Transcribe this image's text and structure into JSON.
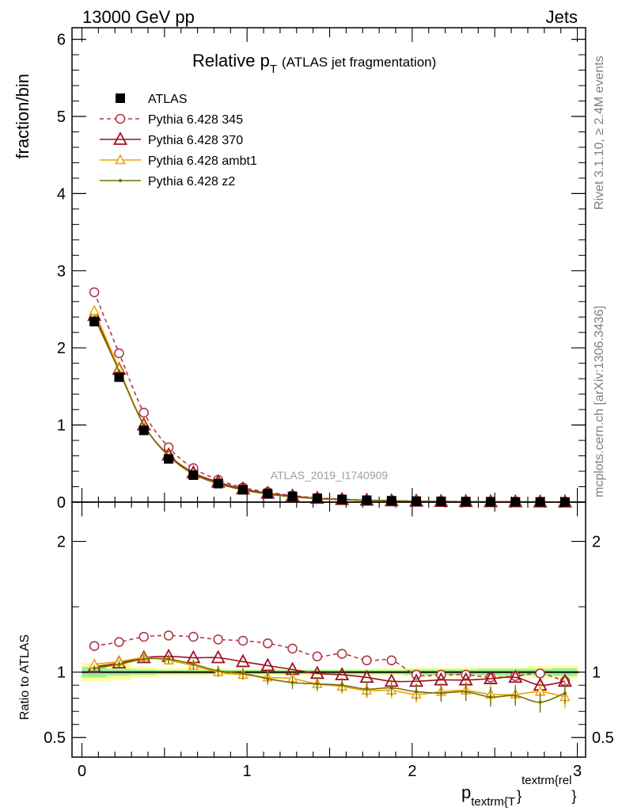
{
  "header": {
    "left": "13000 GeV pp",
    "right": "Jets"
  },
  "side": {
    "rivet": "Rivet 3.1.10, ≥ 2.4M events",
    "mcplots": "mcplots.cern.ch [arXiv:1306.3436]"
  },
  "chart_data": [
    {
      "type": "line",
      "panel": "main",
      "title_main": "Relative p",
      "title_sub": "T",
      "title_rest": "(ATLAS jet fragmentation)",
      "ylabel": "fraction/bin",
      "analysis": "ATLAS_2019_I1740909",
      "xlim": [
        -0.06,
        3.05
      ],
      "ylim": [
        0,
        6.15
      ],
      "yticks": [
        0,
        1,
        2,
        3,
        4,
        5,
        6
      ],
      "x": [
        0.075,
        0.225,
        0.375,
        0.525,
        0.675,
        0.825,
        0.975,
        1.125,
        1.275,
        1.425,
        1.575,
        1.725,
        1.875,
        2.025,
        2.175,
        2.325,
        2.475,
        2.625,
        2.775,
        2.925
      ],
      "series": [
        {
          "name": "ATLAS",
          "color": "#000000",
          "style": "data",
          "values": [
            2.34,
            1.62,
            0.93,
            0.56,
            0.35,
            0.24,
            0.16,
            0.11,
            0.075,
            0.05,
            0.035,
            0.025,
            0.018,
            0.013,
            0.01,
            0.007,
            0.005,
            0.004,
            0.003,
            0.002
          ]
        },
        {
          "name": "Pythia 6.428 345",
          "color": "#b03a48",
          "style": "dashed-circle",
          "values": [
            2.72,
            1.93,
            1.16,
            0.71,
            0.44,
            0.29,
            0.19,
            0.13,
            0.085,
            0.055,
            0.038,
            0.027,
            0.019,
            0.013,
            0.01,
            0.007,
            0.005,
            0.004,
            0.003,
            0.002
          ]
        },
        {
          "name": "Pythia 6.428 370",
          "color": "#9b1024",
          "style": "solid-triangle",
          "values": [
            2.42,
            1.72,
            1.0,
            0.61,
            0.38,
            0.26,
            0.17,
            0.115,
            0.078,
            0.05,
            0.034,
            0.024,
            0.017,
            0.012,
            0.009,
            0.0068,
            0.0048,
            0.0038,
            0.0027,
            0.0019
          ]
        },
        {
          "name": "Pythia 6.428 ambt1",
          "color": "#f0a000",
          "style": "solid-triangle-small",
          "values": [
            2.48,
            1.73,
            1.0,
            0.6,
            0.36,
            0.24,
            0.155,
            0.105,
            0.07,
            0.045,
            0.031,
            0.022,
            0.016,
            0.011,
            0.0085,
            0.006,
            0.0042,
            0.0034,
            0.0026,
            0.0016
          ]
        },
        {
          "name": "Pythia 6.428 z2",
          "color": "#707000",
          "style": "solid-dot",
          "values": [
            2.4,
            1.7,
            1.0,
            0.6,
            0.37,
            0.24,
            0.16,
            0.105,
            0.069,
            0.045,
            0.031,
            0.022,
            0.016,
            0.011,
            0.0085,
            0.006,
            0.0041,
            0.0033,
            0.0023,
            0.0017
          ]
        }
      ]
    },
    {
      "type": "line",
      "panel": "ratio",
      "ylabel": "Ratio to ATLAS",
      "xlabel_main": "p",
      "xlabel_sub": "textrm{T",
      "xlabel_brace": "}",
      "xlabel_sup": "textrm{rel",
      "xlabel_close": "}",
      "xlim": [
        -0.06,
        3.05
      ],
      "ylim": [
        0.35,
        2.3
      ],
      "yticks": [
        0.5,
        1,
        2
      ],
      "ytick_labels": [
        "0.5",
        "1",
        "2"
      ],
      "xticks": [
        0,
        1,
        2,
        3
      ],
      "xtick_labels": [
        "0",
        "1",
        "2",
        "3"
      ],
      "x": [
        0.075,
        0.225,
        0.375,
        0.525,
        0.675,
        0.825,
        0.975,
        1.125,
        1.275,
        1.425,
        1.575,
        1.725,
        1.875,
        2.025,
        2.175,
        2.325,
        2.475,
        2.625,
        2.775,
        2.925
      ],
      "band_stat": [
        0.04,
        0.025,
        0.02,
        0.015,
        0.015,
        0.015,
        0.015,
        0.015,
        0.015,
        0.015,
        0.015,
        0.015,
        0.015,
        0.02,
        0.02,
        0.02,
        0.025,
        0.025,
        0.025,
        0.03
      ],
      "band_total": [
        0.07,
        0.06,
        0.04,
        0.03,
        0.03,
        0.025,
        0.025,
        0.025,
        0.025,
        0.025,
        0.025,
        0.025,
        0.03,
        0.035,
        0.035,
        0.035,
        0.04,
        0.04,
        0.045,
        0.05
      ],
      "series": [
        {
          "name": "Pythia 6.428 345",
          "color": "#b03a48",
          "style": "dashed-circle",
          "values": [
            1.2,
            1.23,
            1.27,
            1.28,
            1.27,
            1.25,
            1.24,
            1.22,
            1.18,
            1.12,
            1.14,
            1.09,
            1.09,
            0.98,
            0.98,
            0.98,
            0.96,
            0.97,
            0.99,
            0.93
          ]
        },
        {
          "name": "Pythia 6.428 370",
          "color": "#9b1024",
          "style": "solid-triangle",
          "values": [
            1.04,
            1.07,
            1.11,
            1.12,
            1.11,
            1.11,
            1.08,
            1.05,
            1.02,
            0.99,
            0.98,
            0.96,
            0.93,
            0.93,
            0.94,
            0.94,
            0.95,
            0.96,
            0.9,
            0.93
          ]
        },
        {
          "name": "Pythia 6.428 ambt1",
          "color": "#f0a000",
          "style": "solid-triangle-small",
          "values": [
            1.06,
            1.08,
            1.11,
            1.09,
            1.05,
            1.0,
            0.98,
            0.96,
            0.95,
            0.91,
            0.89,
            0.86,
            0.86,
            0.83,
            0.85,
            0.86,
            0.83,
            0.83,
            0.85,
            0.81
          ]
        },
        {
          "name": "Pythia 6.428 z2",
          "color": "#707000",
          "style": "solid-dot",
          "values": [
            1.03,
            1.06,
            1.1,
            1.1,
            1.06,
            1.01,
            0.99,
            0.95,
            0.92,
            0.91,
            0.9,
            0.87,
            0.88,
            0.85,
            0.84,
            0.85,
            0.81,
            0.82,
            0.77,
            0.84
          ]
        }
      ]
    }
  ]
}
